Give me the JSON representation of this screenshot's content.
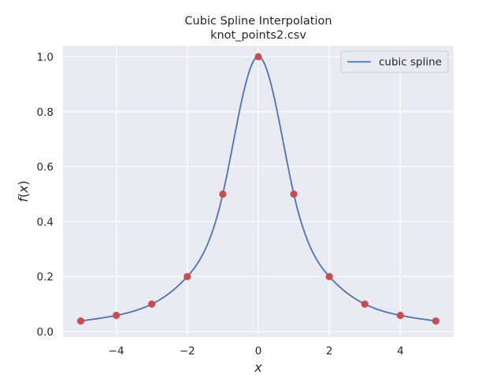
{
  "chart_data": {
    "type": "line",
    "title": "Cubic Spline Interpolation",
    "subtitle": "knot_points2.csv",
    "xlabel": "x",
    "ylabel": "f(x)",
    "xlim": [
      -5.5,
      5.5
    ],
    "ylim": [
      -0.02,
      1.04
    ],
    "xticks": [
      -4,
      -2,
      0,
      2,
      4
    ],
    "xtick_labels": [
      "−4",
      "−2",
      "0",
      "2",
      "4"
    ],
    "yticks": [
      0.0,
      0.2,
      0.4,
      0.6,
      0.8,
      1.0
    ],
    "ytick_labels": [
      "0.0",
      "0.2",
      "0.4",
      "0.6",
      "0.8",
      "1.0"
    ],
    "grid": true,
    "legend_position": "top-right",
    "series": [
      {
        "name": "cubic spline",
        "kind": "line",
        "color": "#4c72b0"
      },
      {
        "kind": "scatter",
        "color": "#c44e52",
        "x": [
          -5,
          -4,
          -3,
          -2,
          -1,
          0,
          1,
          2,
          3,
          4,
          5
        ],
        "y": [
          0.0385,
          0.0588,
          0.1,
          0.2,
          0.5,
          1.0,
          0.5,
          0.2,
          0.1,
          0.0588,
          0.0385
        ]
      }
    ]
  },
  "colors": {
    "axes_background": "#eaeaf2",
    "grid": "#ffffff",
    "text": "#262626",
    "line": "#4c72b0",
    "marker": "#c44e52"
  }
}
